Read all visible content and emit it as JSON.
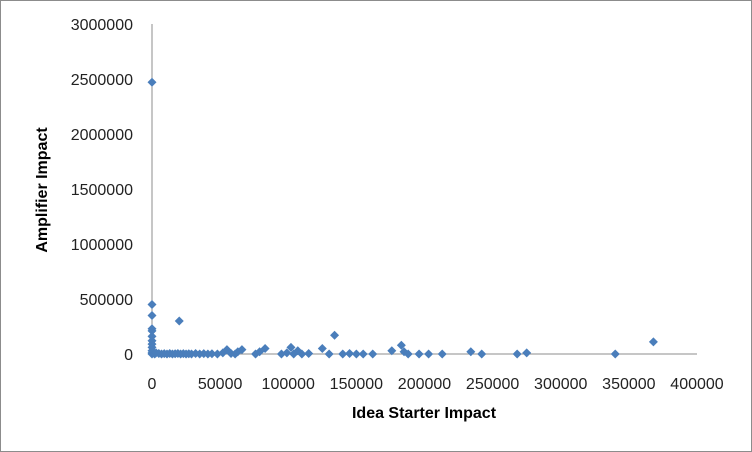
{
  "chart_data": {
    "type": "scatter",
    "title": "",
    "xlabel": "Idea Starter  Impact",
    "ylabel": "Amplifier Impact",
    "xlim": [
      0,
      400000
    ],
    "ylim": [
      0,
      3000000
    ],
    "x_ticks": [
      0,
      50000,
      100000,
      150000,
      200000,
      250000,
      300000,
      350000,
      400000
    ],
    "y_ticks": [
      0,
      500000,
      1000000,
      1500000,
      2000000,
      2500000,
      3000000
    ],
    "x_tick_labels": [
      "0",
      "50000",
      "100000",
      "150000",
      "200000",
      "250000",
      "300000",
      "350000",
      "400000"
    ],
    "y_tick_labels": [
      "0",
      "500000",
      "1000000",
      "1500000",
      "2000000",
      "2500000",
      "3000000"
    ],
    "grid": false,
    "legend": "none",
    "marker": "diamond",
    "marker_color": "#4a7ebb",
    "points": [
      {
        "x": 0,
        "y": 2470000
      },
      {
        "x": 0,
        "y": 450000
      },
      {
        "x": 0,
        "y": 350000
      },
      {
        "x": 0,
        "y": 230000
      },
      {
        "x": 0,
        "y": 210000
      },
      {
        "x": 0,
        "y": 160000
      },
      {
        "x": 0,
        "y": 120000
      },
      {
        "x": 0,
        "y": 90000
      },
      {
        "x": 0,
        "y": 60000
      },
      {
        "x": 0,
        "y": 30000
      },
      {
        "x": 0,
        "y": 10000
      },
      {
        "x": 0,
        "y": 0
      },
      {
        "x": 2000,
        "y": 0
      },
      {
        "x": 3000,
        "y": 10000
      },
      {
        "x": 5000,
        "y": 5000
      },
      {
        "x": 7000,
        "y": 0
      },
      {
        "x": 9000,
        "y": 3000
      },
      {
        "x": 11000,
        "y": 0
      },
      {
        "x": 13000,
        "y": 5000
      },
      {
        "x": 15000,
        "y": 0
      },
      {
        "x": 17000,
        "y": 2000
      },
      {
        "x": 19000,
        "y": 5000
      },
      {
        "x": 20000,
        "y": 300000
      },
      {
        "x": 21000,
        "y": 0
      },
      {
        "x": 23000,
        "y": 3000
      },
      {
        "x": 25000,
        "y": 0
      },
      {
        "x": 27000,
        "y": 2000
      },
      {
        "x": 29000,
        "y": 0
      },
      {
        "x": 32000,
        "y": 5000
      },
      {
        "x": 35000,
        "y": 0
      },
      {
        "x": 38000,
        "y": 3000
      },
      {
        "x": 41000,
        "y": 0
      },
      {
        "x": 44000,
        "y": 2000
      },
      {
        "x": 48000,
        "y": 0
      },
      {
        "x": 52000,
        "y": 10000
      },
      {
        "x": 55000,
        "y": 40000
      },
      {
        "x": 58000,
        "y": 5000
      },
      {
        "x": 61000,
        "y": 0
      },
      {
        "x": 63000,
        "y": 20000
      },
      {
        "x": 66000,
        "y": 40000
      },
      {
        "x": 76000,
        "y": 0
      },
      {
        "x": 79000,
        "y": 20000
      },
      {
        "x": 83000,
        "y": 50000
      },
      {
        "x": 95000,
        "y": 0
      },
      {
        "x": 99000,
        "y": 10000
      },
      {
        "x": 102000,
        "y": 60000
      },
      {
        "x": 104000,
        "y": 0
      },
      {
        "x": 107000,
        "y": 30000
      },
      {
        "x": 110000,
        "y": 0
      },
      {
        "x": 115000,
        "y": 5000
      },
      {
        "x": 125000,
        "y": 50000
      },
      {
        "x": 130000,
        "y": 0
      },
      {
        "x": 134000,
        "y": 170000
      },
      {
        "x": 140000,
        "y": 0
      },
      {
        "x": 145000,
        "y": 5000
      },
      {
        "x": 150000,
        "y": 0
      },
      {
        "x": 155000,
        "y": 0
      },
      {
        "x": 162000,
        "y": 0
      },
      {
        "x": 176000,
        "y": 30000
      },
      {
        "x": 183000,
        "y": 80000
      },
      {
        "x": 185000,
        "y": 20000
      },
      {
        "x": 188000,
        "y": 0
      },
      {
        "x": 196000,
        "y": 0
      },
      {
        "x": 203000,
        "y": 0
      },
      {
        "x": 213000,
        "y": 0
      },
      {
        "x": 234000,
        "y": 20000
      },
      {
        "x": 242000,
        "y": 0
      },
      {
        "x": 268000,
        "y": 0
      },
      {
        "x": 275000,
        "y": 10000
      },
      {
        "x": 340000,
        "y": 0
      },
      {
        "x": 368000,
        "y": 110000
      }
    ]
  }
}
